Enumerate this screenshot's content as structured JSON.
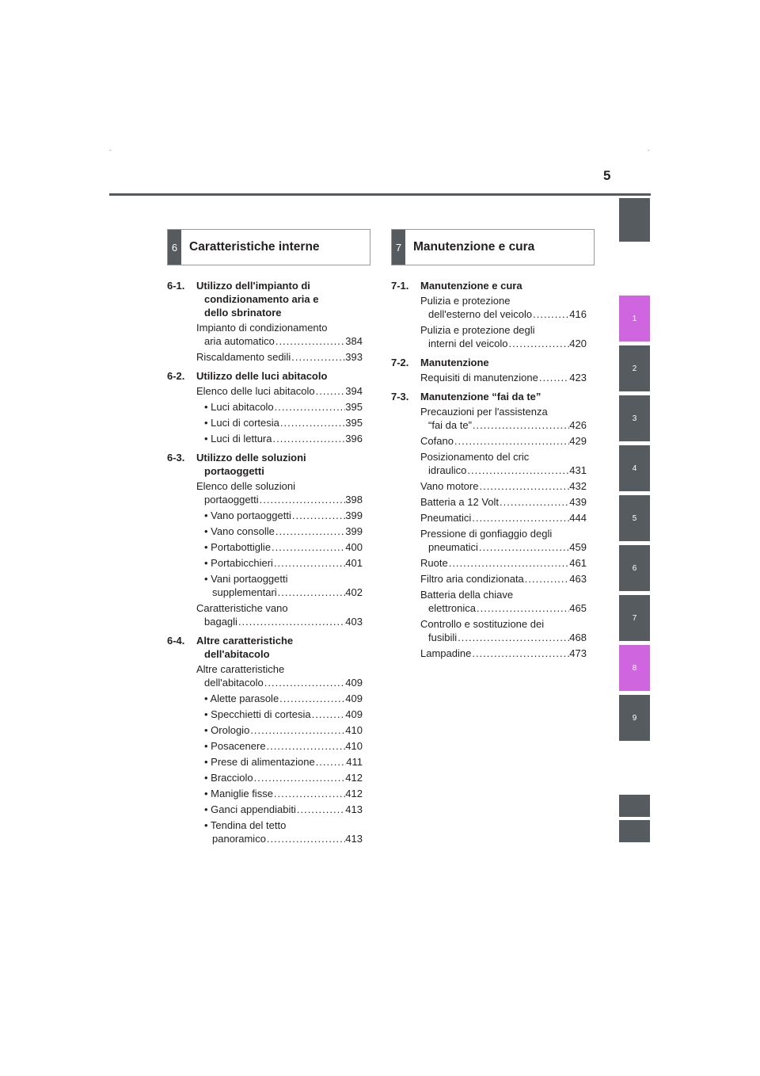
{
  "page": {
    "number": "5",
    "crop_mark": "-"
  },
  "tabs": [
    "1",
    "2",
    "3",
    "4",
    "5",
    "6",
    "7",
    "8",
    "9"
  ],
  "chapter6": {
    "num": "6",
    "title": "Caratteristiche interne",
    "sections": [
      {
        "code": "6-1.",
        "title1": "Utilizzo dell'impianto di",
        "title2": "condizionamento aria e",
        "title3": "dello sbrinatore",
        "entries": [
          {
            "t1": "Impianto di condizionamento",
            "t2": "aria automatico",
            "pg": "384"
          },
          {
            "t1": "Riscaldamento sedili",
            "pg": "393"
          }
        ]
      },
      {
        "code": "6-2.",
        "title1": "Utilizzo delle luci abitacolo",
        "entries": [
          {
            "t1": "Elenco delle luci abitacolo",
            "pg": "394"
          },
          {
            "b": "• Luci abitacolo",
            "pg": "395"
          },
          {
            "b": "• Luci di cortesia",
            "pg": "395"
          },
          {
            "b": "• Luci di lettura",
            "pg": "396"
          }
        ]
      },
      {
        "code": "6-3.",
        "title1": "Utilizzo delle soluzioni",
        "title2": "portaoggetti",
        "entries": [
          {
            "t1": "Elenco delle soluzioni",
            "t2": "portaoggetti",
            "pg": "398"
          },
          {
            "b": "• Vano portaoggetti",
            "pg": "399"
          },
          {
            "b": "• Vano consolle",
            "pg": "399"
          },
          {
            "b": "• Portabottiglie",
            "pg": "400"
          },
          {
            "b": "• Portabicchieri",
            "pg": "401"
          },
          {
            "b": "• Vani portaoggetti",
            "b2": "supplementari",
            "pg": "402"
          },
          {
            "t1": "Caratteristiche vano",
            "t2": "bagagli",
            "pg": "403"
          }
        ]
      },
      {
        "code": "6-4.",
        "title1": "Altre caratteristiche",
        "title2": "dell'abitacolo",
        "entries": [
          {
            "t1": "Altre caratteristiche",
            "t2": "dell'abitacolo",
            "pg": "409"
          },
          {
            "b": "• Alette parasole",
            "pg": "409"
          },
          {
            "b": "• Specchietti di cortesia",
            "pg": "409"
          },
          {
            "b": "• Orologio",
            "pg": "410"
          },
          {
            "b": "• Posacenere",
            "pg": "410"
          },
          {
            "b": "• Prese di alimentazione",
            "pg": "411"
          },
          {
            "b": "• Bracciolo",
            "pg": "412"
          },
          {
            "b": "• Maniglie fisse",
            "pg": "412"
          },
          {
            "b": "• Ganci appendiabiti",
            "pg": "413"
          },
          {
            "b": "• Tendina del tetto",
            "b2": "panoramico",
            "pg": "413"
          }
        ]
      }
    ]
  },
  "chapter7": {
    "num": "7",
    "title": "Manutenzione e cura",
    "sections": [
      {
        "code": "7-1.",
        "title1": "Manutenzione e cura",
        "entries": [
          {
            "t1": "Pulizia e protezione",
            "t2": "dell'esterno del veicolo",
            "pg": "416"
          },
          {
            "t1": "Pulizia e protezione degli",
            "t2": "interni del veicolo",
            "pg": "420"
          }
        ]
      },
      {
        "code": "7-2.",
        "title1": "Manutenzione",
        "entries": [
          {
            "t1": "Requisiti di manutenzione",
            "pg": "423"
          }
        ]
      },
      {
        "code": "7-3.",
        "title1": "Manutenzione “fai da te”",
        "entries": [
          {
            "t1": "Precauzioni per l'assistenza",
            "t2": "“fai da te”",
            "pg": "426"
          },
          {
            "t1": "Cofano",
            "pg": "429"
          },
          {
            "t1": "Posizionamento del cric",
            "t2": "idraulico",
            "pg": "431"
          },
          {
            "t1": "Vano motore",
            "pg": "432"
          },
          {
            "t1": "Batteria a 12 Volt",
            "pg": "439"
          },
          {
            "t1": "Pneumatici",
            "pg": "444"
          },
          {
            "t1": "Pressione di gonfiaggio degli",
            "t2": "pneumatici",
            "pg": "459"
          },
          {
            "t1": "Ruote",
            "pg": "461"
          },
          {
            "t1": "Filtro aria condizionata",
            "pg": "463"
          },
          {
            "t1": "Batteria della chiave",
            "t2": "elettronica",
            "pg": "465"
          },
          {
            "t1": "Controllo e sostituzione dei",
            "t2": "fusibili",
            "pg": "468"
          },
          {
            "t1": "Lampadine",
            "pg": "473"
          }
        ]
      }
    ]
  },
  "colors": {
    "tab_gray": "#565b5f",
    "tab_pink": "#cf66e0"
  }
}
